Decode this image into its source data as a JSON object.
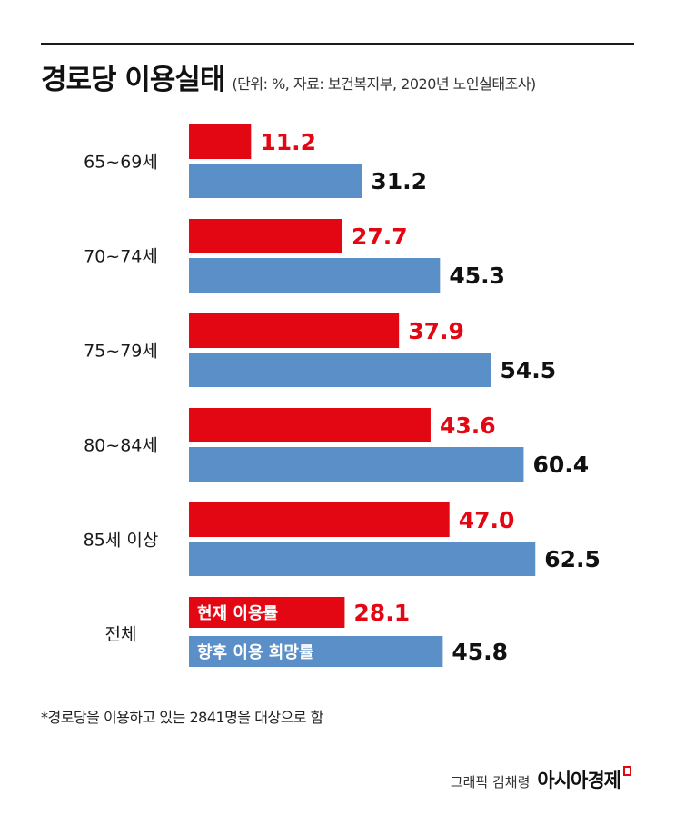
{
  "header": {
    "title": "경로당 이용실태",
    "subtitle": "(단위: %, 자료: 보건복지부, 2020년 노인실태조사)"
  },
  "chart_data": {
    "type": "bar",
    "orientation": "horizontal",
    "title": "경로당 이용실태",
    "subtitle": "(단위: %, 자료: 보건복지부, 2020년 노인실태조사)",
    "categories": [
      "65~69세",
      "70~74세",
      "75~79세",
      "80~84세",
      "85세 이상",
      "전체"
    ],
    "series": [
      {
        "name": "현재 이용률",
        "color": "#e30613",
        "values": [
          11.2,
          27.7,
          37.9,
          43.6,
          47.0,
          28.1
        ],
        "labels": [
          "11.2",
          "27.7",
          "37.9",
          "43.6",
          "47.0",
          "28.1"
        ]
      },
      {
        "name": "향후 이용 희망률",
        "color": "#5b8fc7",
        "values": [
          31.2,
          45.3,
          54.5,
          60.4,
          62.5,
          45.8
        ],
        "labels": [
          "31.2",
          "45.3",
          "54.5",
          "60.4",
          "62.5",
          "45.8"
        ]
      }
    ],
    "legend_placement": "inside-last-group",
    "grid": false
  },
  "footnote": "*경로당을 이용하고 있는 2841명을 대상으로 함",
  "credit": {
    "text": "그래픽 김채령",
    "brand": "아시아경제"
  }
}
